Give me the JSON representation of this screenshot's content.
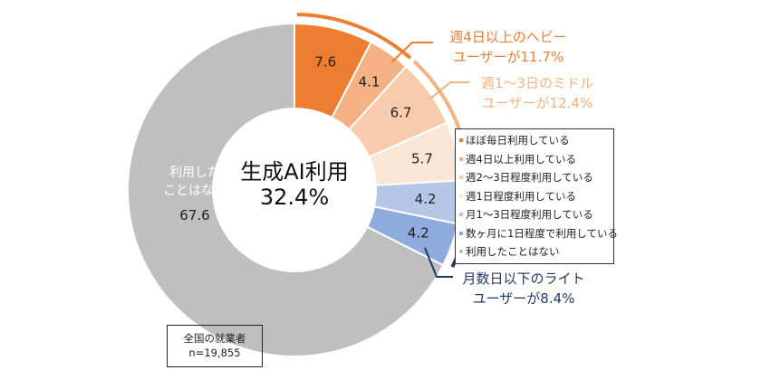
{
  "chart_data": {
    "type": "pie",
    "subtype": "donut",
    "title": "生成AI利用",
    "center_label": "生成AI利用",
    "center_value": "32.4%",
    "start": "top",
    "direction": "clockwise",
    "slices": [
      {
        "label": "ほぼ毎日利用している",
        "value": 7.6,
        "display": "7.6",
        "color": "#ED7D31"
      },
      {
        "label": "週4日以上利用している",
        "value": 4.1,
        "display": "4.1",
        "color": "#F4B183"
      },
      {
        "label": "週2～3日程度利用している",
        "value": 6.7,
        "display": "6.7",
        "color": "#F8CBAD"
      },
      {
        "label": "週1日程度利用している",
        "value": 5.7,
        "display": "5.7",
        "color": "#FBE5D6"
      },
      {
        "label": "月1～3日程度利用している",
        "value": 4.2,
        "display": "4.2",
        "color": "#B4C7E7"
      },
      {
        "label": "数ヶ月に1日程度で利用している",
        "value": 4.2,
        "display": "4.2",
        "color": "#8FAADC"
      },
      {
        "label": "利用したことはない",
        "value": 67.6,
        "display": "67.6",
        "color": "#BFBFBF"
      }
    ],
    "gray_inner_label": [
      "利用した",
      "ことはない"
    ],
    "legend_placement": "right",
    "annotations": [
      {
        "lines": [
          "週4日以上のヘビー",
          "ユーザーが11.7%"
        ],
        "color": "#ED7D31",
        "covers": [
          0,
          1
        ]
      },
      {
        "lines": [
          "週1～3日のミドル",
          "ユーザーが12.4%"
        ],
        "color": "#F4B183",
        "covers": [
          2,
          3
        ]
      },
      {
        "lines": [
          "月数日以下のライト",
          "ユーザーが8.4%"
        ],
        "color": "#203864",
        "covers": [
          4,
          5
        ]
      }
    ]
  },
  "note": {
    "line1": "全国の就業者",
    "line2": "n=19,855"
  }
}
